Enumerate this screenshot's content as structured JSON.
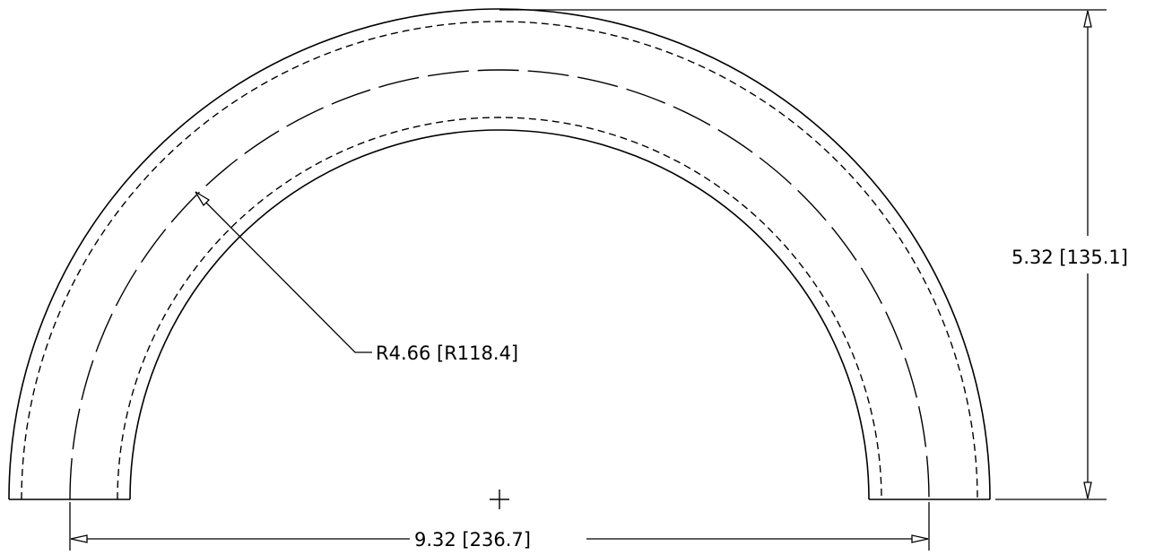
{
  "drawing": {
    "radius_dim": "R4.66 [R118.4]",
    "height_dim": "5.32 [135.1]",
    "width_dim": "9.32 [236.7]",
    "line_color": "#000000",
    "background_color": "#ffffff"
  }
}
